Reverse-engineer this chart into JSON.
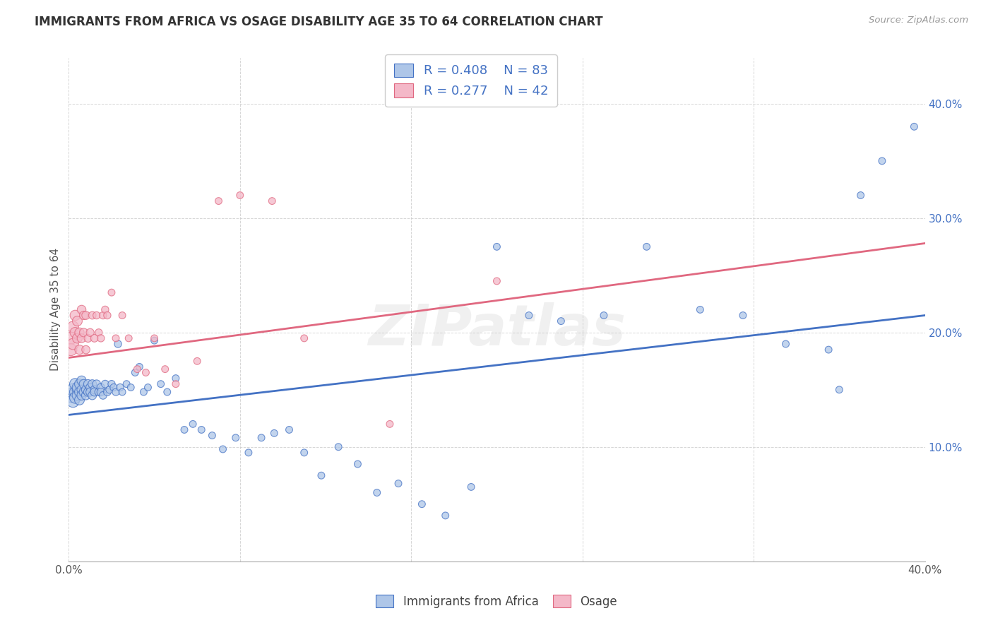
{
  "title": "IMMIGRANTS FROM AFRICA VS OSAGE DISABILITY AGE 35 TO 64 CORRELATION CHART",
  "source": "Source: ZipAtlas.com",
  "ylabel": "Disability Age 35 to 64",
  "xlim": [
    0.0,
    0.4
  ],
  "ylim": [
    0.0,
    0.44
  ],
  "ytick_positions": [
    0.1,
    0.2,
    0.3,
    0.4
  ],
  "ytick_labels": [
    "10.0%",
    "20.0%",
    "30.0%",
    "40.0%"
  ],
  "xtick_positions": [
    0.0,
    0.08,
    0.16,
    0.24,
    0.32,
    0.4
  ],
  "xtick_labels": [
    "0.0%",
    "",
    "",
    "",
    "",
    "40.0%"
  ],
  "blue_R": 0.408,
  "blue_N": 83,
  "pink_R": 0.277,
  "pink_N": 42,
  "blue_color": "#AEC6E8",
  "pink_color": "#F4B8C8",
  "blue_edge_color": "#4472C4",
  "pink_edge_color": "#E06880",
  "blue_line_color": "#4472C4",
  "pink_line_color": "#E06880",
  "legend_text_color": "#4472C4",
  "ytick_color": "#4472C4",
  "watermark": "ZIPatlas",
  "blue_line_y_start": 0.128,
  "blue_line_y_end": 0.215,
  "pink_line_y_start": 0.178,
  "pink_line_y_end": 0.278,
  "blue_x": [
    0.001,
    0.002,
    0.002,
    0.003,
    0.003,
    0.003,
    0.004,
    0.004,
    0.004,
    0.005,
    0.005,
    0.005,
    0.006,
    0.006,
    0.006,
    0.007,
    0.007,
    0.008,
    0.008,
    0.009,
    0.009,
    0.01,
    0.01,
    0.011,
    0.011,
    0.012,
    0.012,
    0.013,
    0.014,
    0.015,
    0.015,
    0.016,
    0.017,
    0.018,
    0.019,
    0.02,
    0.021,
    0.022,
    0.023,
    0.024,
    0.025,
    0.027,
    0.029,
    0.031,
    0.033,
    0.035,
    0.037,
    0.04,
    0.043,
    0.046,
    0.05,
    0.054,
    0.058,
    0.062,
    0.067,
    0.072,
    0.078,
    0.084,
    0.09,
    0.096,
    0.103,
    0.11,
    0.118,
    0.126,
    0.135,
    0.144,
    0.154,
    0.165,
    0.176,
    0.188,
    0.2,
    0.215,
    0.23,
    0.25,
    0.27,
    0.295,
    0.315,
    0.335,
    0.355,
    0.36,
    0.37,
    0.38,
    0.395
  ],
  "blue_y": [
    0.145,
    0.15,
    0.14,
    0.148,
    0.155,
    0.143,
    0.15,
    0.145,
    0.152,
    0.148,
    0.155,
    0.141,
    0.15,
    0.145,
    0.158,
    0.148,
    0.155,
    0.145,
    0.15,
    0.148,
    0.155,
    0.152,
    0.148,
    0.145,
    0.155,
    0.15,
    0.148,
    0.155,
    0.148,
    0.152,
    0.148,
    0.145,
    0.155,
    0.148,
    0.15,
    0.155,
    0.152,
    0.148,
    0.19,
    0.152,
    0.148,
    0.155,
    0.152,
    0.165,
    0.17,
    0.148,
    0.152,
    0.193,
    0.155,
    0.148,
    0.16,
    0.115,
    0.12,
    0.115,
    0.11,
    0.098,
    0.108,
    0.095,
    0.108,
    0.112,
    0.115,
    0.095,
    0.075,
    0.1,
    0.085,
    0.06,
    0.068,
    0.05,
    0.04,
    0.065,
    0.275,
    0.215,
    0.21,
    0.215,
    0.275,
    0.22,
    0.215,
    0.19,
    0.185,
    0.15,
    0.32,
    0.35,
    0.38
  ],
  "blue_sizes": [
    200,
    160,
    160,
    130,
    130,
    130,
    110,
    110,
    110,
    100,
    100,
    100,
    90,
    90,
    90,
    85,
    85,
    80,
    80,
    80,
    80,
    75,
    75,
    75,
    75,
    70,
    70,
    70,
    65,
    65,
    65,
    60,
    60,
    60,
    55,
    55,
    55,
    55,
    55,
    55,
    50,
    50,
    50,
    50,
    50,
    50,
    50,
    50,
    50,
    50,
    50,
    50,
    50,
    50,
    50,
    50,
    50,
    50,
    50,
    50,
    50,
    50,
    50,
    50,
    50,
    50,
    50,
    50,
    50,
    50,
    50,
    50,
    50,
    50,
    50,
    50,
    50,
    50,
    50,
    50,
    50,
    50,
    50
  ],
  "pink_x": [
    0.001,
    0.001,
    0.002,
    0.002,
    0.003,
    0.003,
    0.004,
    0.004,
    0.005,
    0.005,
    0.006,
    0.006,
    0.007,
    0.007,
    0.008,
    0.008,
    0.009,
    0.01,
    0.011,
    0.012,
    0.013,
    0.014,
    0.015,
    0.016,
    0.017,
    0.018,
    0.02,
    0.022,
    0.025,
    0.028,
    0.032,
    0.036,
    0.04,
    0.045,
    0.05,
    0.06,
    0.07,
    0.08,
    0.095,
    0.11,
    0.15,
    0.2
  ],
  "pink_y": [
    0.195,
    0.185,
    0.205,
    0.19,
    0.2,
    0.215,
    0.195,
    0.21,
    0.185,
    0.2,
    0.22,
    0.195,
    0.215,
    0.2,
    0.185,
    0.215,
    0.195,
    0.2,
    0.215,
    0.195,
    0.215,
    0.2,
    0.195,
    0.215,
    0.22,
    0.215,
    0.235,
    0.195,
    0.215,
    0.195,
    0.168,
    0.165,
    0.195,
    0.168,
    0.155,
    0.175,
    0.315,
    0.32,
    0.315,
    0.195,
    0.12,
    0.245
  ],
  "pink_sizes": [
    150,
    150,
    130,
    130,
    110,
    110,
    100,
    100,
    90,
    90,
    80,
    80,
    75,
    75,
    70,
    70,
    65,
    65,
    60,
    60,
    55,
    55,
    55,
    55,
    55,
    55,
    50,
    50,
    50,
    50,
    50,
    50,
    50,
    50,
    50,
    50,
    50,
    50,
    50,
    50,
    50,
    50
  ]
}
